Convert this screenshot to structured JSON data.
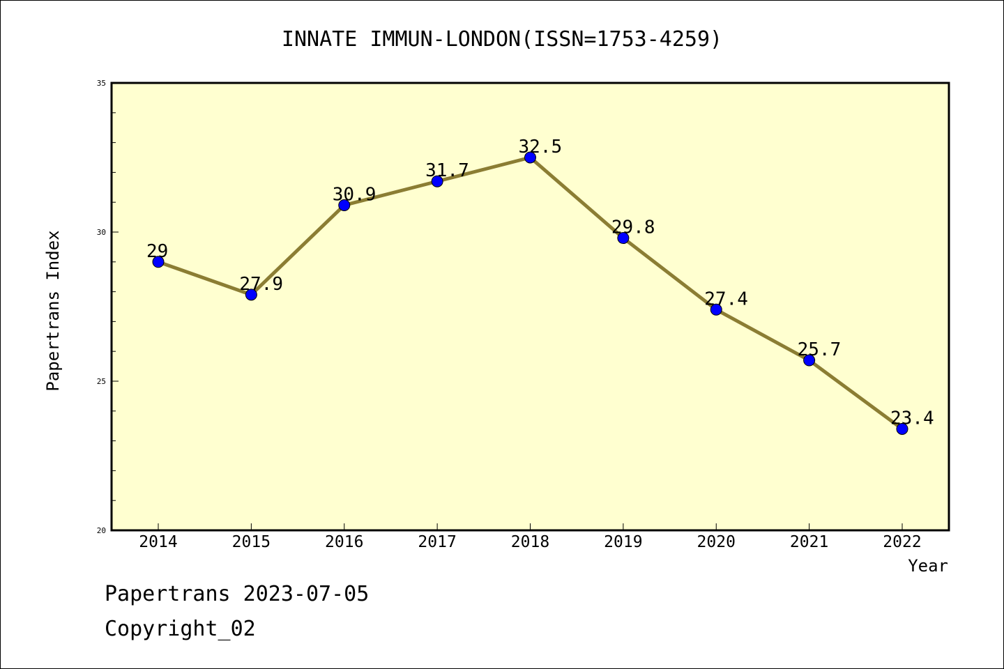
{
  "chart_data": {
    "type": "line",
    "title": "INNATE IMMUN-LONDON(ISSN=1753-4259)",
    "xlabel": "Year",
    "ylabel": "Papertrans Index",
    "categories": [
      "2014",
      "2015",
      "2016",
      "2017",
      "2018",
      "2019",
      "2020",
      "2021",
      "2022"
    ],
    "series": [
      {
        "values": [
          29,
          27.9,
          30.9,
          31.7,
          32.5,
          29.8,
          27.4,
          25.7,
          23.4
        ],
        "labels": [
          "29",
          "27.9",
          "30.9",
          "31.7",
          "32.5",
          "29.8",
          "27.4",
          "25.7",
          "23.4"
        ]
      }
    ],
    "ylim": [
      20,
      35
    ],
    "yticks": [
      "20",
      "25",
      "30",
      "35"
    ],
    "grid": false,
    "plot_background": "#ffffd0",
    "line_color": "#8b7d33",
    "marker_color": "#0000ff"
  },
  "footer": {
    "date_line": "Papertrans 2023-07-05",
    "copyright": "Copyright_02"
  }
}
